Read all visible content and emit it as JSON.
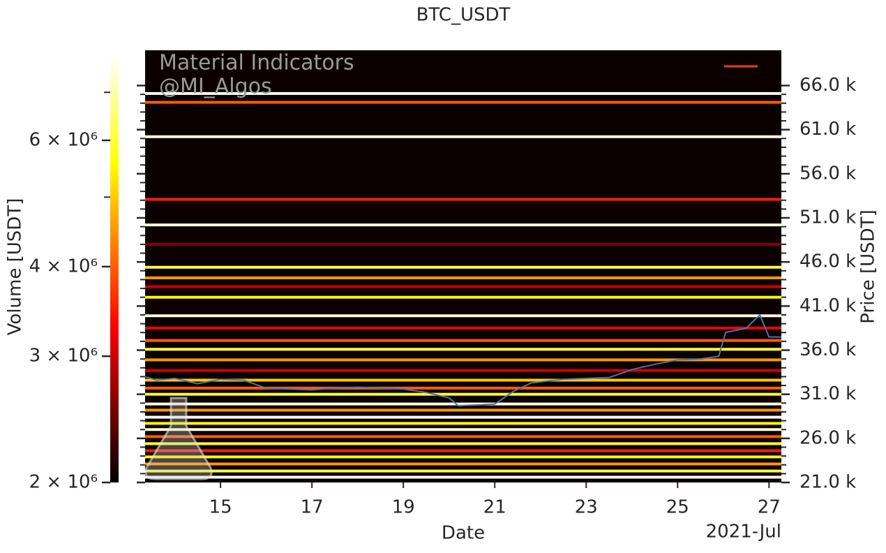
{
  "chart_data": {
    "type": "heatmap",
    "title": "BTC_USDT",
    "xlabel": "Date",
    "x_offset_label": "2021-Jul",
    "ylabel": "Price [USDT]",
    "colorbar_label": "Volume [USDT]",
    "watermark": [
      "Material Indicators",
      "@MI_Algos"
    ],
    "colormap": "hot",
    "background": "#0b0000",
    "xlim": [
      13.35,
      27.27
    ],
    "xticks": [
      15,
      17,
      19,
      21,
      23,
      25,
      27
    ],
    "ylim": [
      21000,
      70000
    ],
    "yticks": [
      {
        "value": 21000,
        "label": "21.0 k"
      },
      {
        "value": 26000,
        "label": "26.0 k"
      },
      {
        "value": 31000,
        "label": "31.0 k"
      },
      {
        "value": 36000,
        "label": "36.0 k"
      },
      {
        "value": 41000,
        "label": "41.0 k"
      },
      {
        "value": 46000,
        "label": "46.0 k"
      },
      {
        "value": 51000,
        "label": "51.0 k"
      },
      {
        "value": 56000,
        "label": "56.0 k"
      },
      {
        "value": 61000,
        "label": "61.0 k"
      },
      {
        "value": 66000,
        "label": "66.0 k"
      }
    ],
    "clim": [
      2000000,
      7870000
    ],
    "clog": true,
    "cticks": [
      {
        "value": 2000000,
        "label": "2 × 10⁶"
      },
      {
        "value": 3000000,
        "label": "3 × 10⁶"
      },
      {
        "value": 4000000,
        "label": "4 × 10⁶"
      },
      {
        "value": 6000000,
        "label": "6 × 10⁶"
      }
    ],
    "cminor": [
      5000000,
      7000000
    ],
    "levels": {
      "price": [
        65100,
        64100,
        60200,
        53100,
        50200,
        48000,
        45400,
        44200,
        43200,
        42000,
        39900,
        38500,
        37100,
        36100,
        34900,
        33700,
        32600,
        31700,
        31000,
        29900,
        29200,
        28400,
        27700,
        27000,
        26200,
        25400,
        24600,
        23900,
        23100,
        22300,
        21600
      ],
      "volume": [
        7800000,
        4000000,
        7500000,
        3500000,
        7500000,
        2600000,
        6000000,
        4500000,
        3000000,
        5500000,
        7500000,
        3200000,
        4000000,
        6000000,
        4500000,
        3000000,
        5000000,
        4000000,
        6000000,
        7500000,
        4500000,
        7800000,
        5500000,
        7500000,
        4000000,
        6000000,
        3500000,
        5500000,
        4500000,
        6000000,
        7800000
      ]
    },
    "series": [
      {
        "name": "BTC_USDT",
        "color": "#4c72b0",
        "x": [
          13.35,
          13.6,
          14.0,
          14.5,
          15.0,
          15.5,
          16.0,
          16.5,
          17.0,
          17.5,
          18.0,
          18.5,
          19.0,
          19.5,
          20.0,
          20.2,
          20.7,
          21.0,
          21.4,
          21.8,
          22.5,
          23.0,
          23.5,
          24.0,
          24.5,
          25.0,
          25.5,
          25.9,
          26.05,
          26.5,
          26.8,
          27.0,
          27.27
        ],
        "values": [
          33000,
          32600,
          32800,
          32200,
          32700,
          32600,
          31700,
          31600,
          31500,
          31700,
          31800,
          31700,
          31600,
          31200,
          30600,
          29700,
          29800,
          29900,
          31300,
          32300,
          32700,
          32800,
          32900,
          33800,
          34400,
          34900,
          35000,
          35300,
          38000,
          38500,
          40000,
          37500,
          37500
        ]
      }
    ]
  }
}
